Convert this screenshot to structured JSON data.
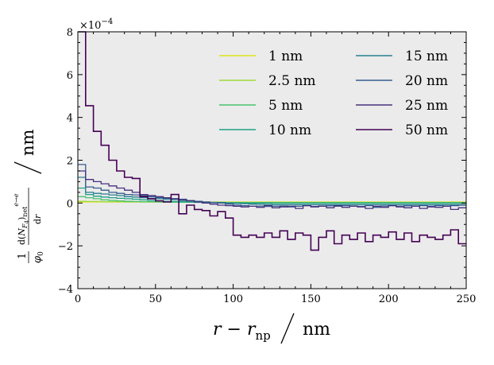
{
  "chart_data": {
    "type": "line",
    "style": "step",
    "title": "",
    "xlabel": "r − r_np / nm",
    "ylabel": "(1/φ0) d(N_F4)net^{e→e}/dr / nm",
    "xlim": [
      0,
      250
    ],
    "ylim": [
      -4,
      8
    ],
    "y_scale_note": "×10^{-4}",
    "xticks": [
      0,
      50,
      100,
      150,
      200,
      250
    ],
    "yticks": [
      -4,
      -2,
      0,
      2,
      4,
      6,
      8
    ],
    "bin_width": 5,
    "legend_position": "top-right",
    "series": [
      {
        "name": "1 nm",
        "color": "#dde318",
        "values": [
          0.05,
          0.05,
          0.05,
          0.05,
          0.05,
          0.05,
          0.05,
          0.05,
          0.05,
          0.05,
          0.05,
          0.05,
          0.05,
          0.05,
          0.05,
          0.05,
          0.05,
          0.05,
          0.05,
          0.05,
          0.05,
          0.05,
          0.05,
          0.05,
          0.05,
          0.05,
          0.05,
          0.05,
          0.05,
          0.05,
          0.05,
          0.05,
          0.05,
          0.05,
          0.05,
          0.05,
          0.05,
          0.05,
          0.05,
          0.05,
          0.05,
          0.05,
          0.05,
          0.05,
          0.05,
          0.05,
          0.05,
          0.05,
          0.05,
          0.05
        ]
      },
      {
        "name": "2.5 nm",
        "color": "#a0da39",
        "values": [
          0.08,
          0.07,
          0.07,
          0.06,
          0.06,
          0.06,
          0.05,
          0.05,
          0.05,
          0.05,
          0.05,
          0.05,
          0.04,
          0.04,
          0.04,
          0.04,
          0.04,
          0.04,
          0.04,
          0.03,
          0.03,
          0.03,
          0.03,
          0.03,
          0.03,
          0.03,
          0.03,
          0.03,
          0.03,
          0.03,
          0.03,
          0.03,
          0.03,
          0.03,
          0.03,
          0.03,
          0.03,
          0.03,
          0.03,
          0.03,
          0.03,
          0.03,
          0.03,
          0.03,
          0.03,
          0.03,
          0.03,
          0.03,
          0.03,
          0.03
        ]
      },
      {
        "name": "5 nm",
        "color": "#4ac16d",
        "values": [
          0.3,
          0.25,
          0.2,
          0.15,
          0.12,
          0.1,
          0.08,
          0.07,
          0.06,
          0.06,
          0.05,
          0.05,
          0.04,
          0.04,
          0.04,
          0.03,
          0.03,
          0.03,
          0.03,
          0.02,
          0.02,
          0.02,
          0.02,
          0.02,
          0.02,
          0.02,
          0.02,
          0.02,
          0.02,
          0.02,
          0.02,
          0.02,
          0.02,
          0.02,
          0.02,
          0.02,
          0.02,
          0.02,
          0.02,
          0.02,
          0.02,
          0.02,
          0.02,
          0.02,
          0.02,
          0.02,
          0.02,
          0.02,
          0.02,
          0.02
        ]
      },
      {
        "name": "10 nm",
        "color": "#1fa187",
        "values": [
          0.7,
          0.4,
          0.32,
          0.28,
          0.25,
          0.22,
          0.2,
          0.18,
          0.15,
          0.12,
          0.1,
          0.08,
          0.07,
          0.06,
          0.05,
          0.04,
          0.03,
          0.02,
          0.02,
          0.01,
          0.01,
          0.0,
          0.0,
          0.0,
          0.0,
          -0.01,
          -0.01,
          -0.01,
          -0.01,
          -0.01,
          -0.01,
          -0.01,
          -0.01,
          -0.01,
          -0.01,
          -0.01,
          -0.01,
          -0.01,
          -0.01,
          -0.01,
          -0.01,
          -0.01,
          -0.01,
          -0.01,
          -0.01,
          -0.01,
          -0.01,
          -0.01,
          -0.01,
          -0.01
        ]
      },
      {
        "name": "15 nm",
        "color": "#277f8e",
        "values": [
          1.2,
          0.5,
          0.45,
          0.42,
          0.38,
          0.35,
          0.3,
          0.28,
          0.25,
          0.22,
          0.2,
          0.18,
          0.16,
          0.12,
          0.1,
          0.08,
          0.05,
          0.03,
          0.02,
          0.0,
          -0.02,
          -0.03,
          -0.05,
          -0.06,
          -0.07,
          -0.08,
          -0.08,
          -0.08,
          -0.08,
          -0.08,
          -0.08,
          -0.08,
          -0.08,
          -0.08,
          -0.08,
          -0.08,
          -0.08,
          -0.08,
          -0.08,
          -0.08,
          -0.08,
          -0.08,
          -0.08,
          -0.08,
          -0.08,
          -0.08,
          -0.08,
          -0.08,
          -0.08,
          -0.08
        ]
      },
      {
        "name": "20 nm",
        "color": "#365c8d",
        "values": [
          1.8,
          0.75,
          0.7,
          0.6,
          0.5,
          0.45,
          0.4,
          0.38,
          0.35,
          0.3,
          0.25,
          0.22,
          0.2,
          0.18,
          0.12,
          0.08,
          0.05,
          0.02,
          0.0,
          -0.05,
          -0.1,
          -0.12,
          -0.15,
          -0.14,
          -0.16,
          -0.15,
          -0.14,
          -0.18,
          -0.15,
          -0.12,
          -0.16,
          -0.14,
          -0.13,
          -0.15,
          -0.12,
          -0.14,
          -0.16,
          -0.12,
          -0.2,
          -0.14,
          -0.12,
          -0.15,
          -0.13,
          -0.14,
          -0.12,
          -0.15,
          -0.12,
          -0.14,
          -0.12,
          -0.1
        ]
      },
      {
        "name": "25 nm",
        "color": "#46327e",
        "values": [
          1.5,
          1.1,
          1.0,
          0.9,
          0.8,
          0.7,
          0.6,
          0.5,
          0.4,
          0.35,
          0.3,
          0.25,
          0.2,
          0.15,
          0.1,
          0.05,
          0.0,
          -0.05,
          -0.1,
          -0.12,
          -0.15,
          -0.18,
          -0.15,
          -0.2,
          -0.12,
          -0.22,
          -0.18,
          -0.15,
          -0.25,
          -0.12,
          -0.18,
          -0.15,
          -0.22,
          -0.12,
          -0.2,
          -0.15,
          -0.18,
          -0.25,
          -0.15,
          -0.2,
          -0.12,
          -0.18,
          -0.22,
          -0.15,
          -0.25,
          -0.18,
          -0.2,
          -0.15,
          -0.3,
          -0.22
        ]
      },
      {
        "name": "50 nm",
        "color": "#440154",
        "values": [
          8.0,
          4.55,
          3.35,
          2.7,
          2.0,
          1.5,
          1.2,
          1.15,
          0.3,
          0.2,
          0.1,
          0.05,
          0.4,
          -0.5,
          -0.1,
          -0.3,
          -0.35,
          -0.6,
          -0.4,
          -0.7,
          -1.5,
          -1.6,
          -1.5,
          -1.6,
          -1.4,
          -1.6,
          -1.3,
          -1.7,
          -1.4,
          -1.5,
          -2.2,
          -1.6,
          -1.3,
          -1.9,
          -1.5,
          -1.7,
          -1.4,
          -1.8,
          -1.5,
          -1.6,
          -1.35,
          -1.7,
          -1.4,
          -1.8,
          -1.5,
          -1.6,
          -1.7,
          -1.5,
          -1.25,
          -1.9
        ]
      }
    ]
  }
}
